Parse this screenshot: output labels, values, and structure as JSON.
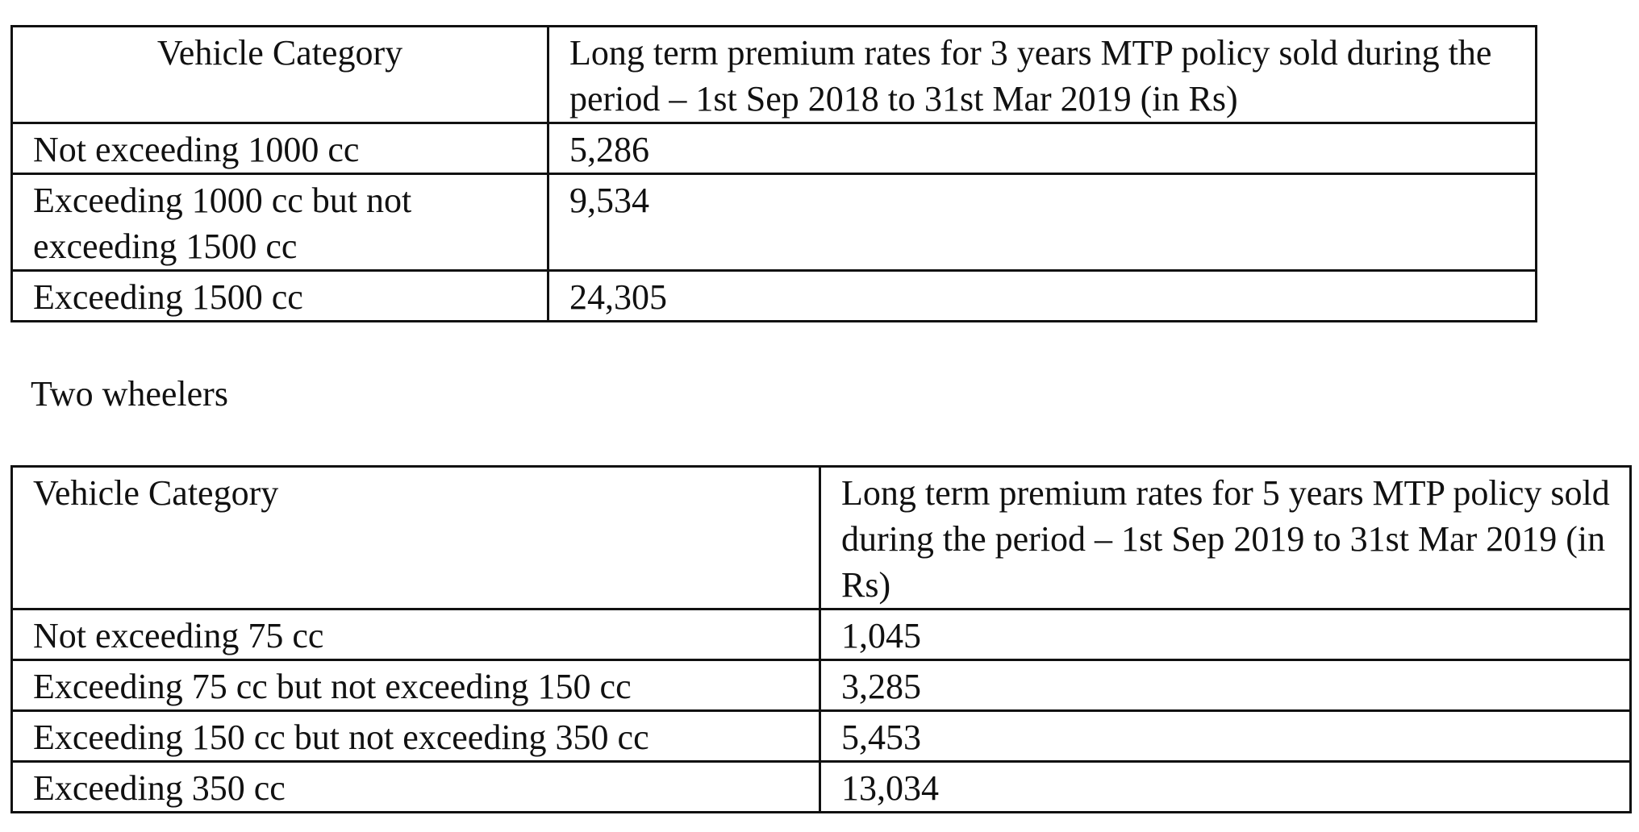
{
  "cars_table": {
    "headers": {
      "category": "Vehicle Category",
      "rate": "Long term premium rates for 3 years MTP policy sold during the period – 1st Sep 2018 to 31st Mar 2019 (in Rs)"
    },
    "rows": [
      {
        "category": "Not exceeding 1000 cc",
        "rate": "5,286"
      },
      {
        "category": "Exceeding 1000 cc but not exceeding 1500 cc",
        "rate": "9,534"
      },
      {
        "category": "Exceeding 1500 cc",
        "rate": "24,305"
      }
    ]
  },
  "two_wheelers": {
    "caption": "Two wheelers",
    "headers": {
      "category": "Vehicle Category",
      "rate": "Long term premium rates for 5 years MTP policy sold during the period – 1st Sep 2019 to 31st Mar 2019 (in Rs)"
    },
    "rows": [
      {
        "category": "Not exceeding 75 cc",
        "rate": "1,045"
      },
      {
        "category": "Exceeding 75 cc but not exceeding 150 cc",
        "rate": "3,285"
      },
      {
        "category": "Exceeding 150 cc but not exceeding 350 cc",
        "rate": "5,453"
      },
      {
        "category": "Exceeding 350 cc",
        "rate": "13,034"
      }
    ]
  }
}
